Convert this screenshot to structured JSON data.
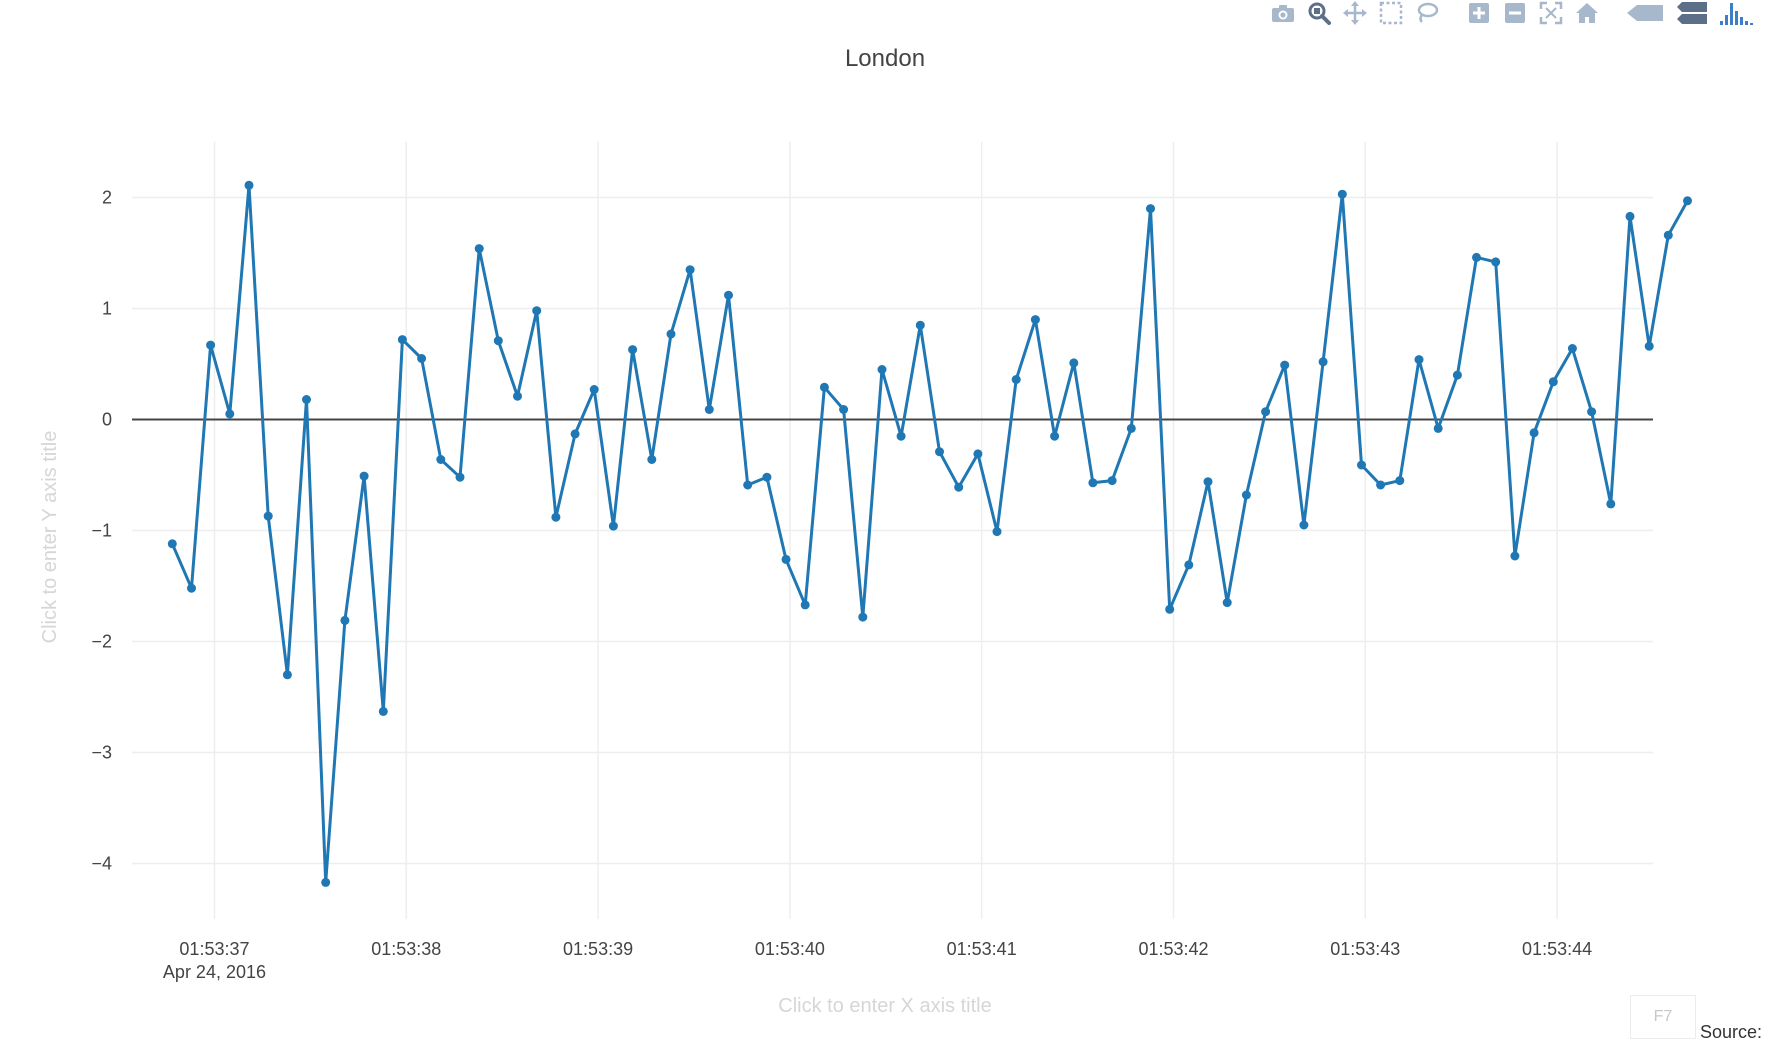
{
  "toolbar": {
    "buttons": [
      {
        "name": "camera-icon",
        "label": "Download plot as a png"
      },
      {
        "name": "zoom-icon",
        "label": "Zoom"
      },
      {
        "name": "pan-icon",
        "label": "Pan"
      },
      {
        "name": "box-select-icon",
        "label": "Box Select"
      },
      {
        "name": "lasso-select-icon",
        "label": "Lasso Select"
      },
      {
        "name": "zoom-in-icon",
        "label": "Zoom in"
      },
      {
        "name": "zoom-out-icon",
        "label": "Zoom out"
      },
      {
        "name": "autoscale-icon",
        "label": "Autoscale"
      },
      {
        "name": "reset-axes-icon",
        "label": "Reset axes"
      },
      {
        "name": "hover-closest-icon",
        "label": "Show closest data on hover"
      },
      {
        "name": "hover-compare-icon",
        "label": "Compare data on hover"
      },
      {
        "name": "plotly-logo-icon",
        "label": "Produced with Plotly"
      }
    ],
    "icon_color": "#a8b8cc",
    "active_color": "#5d6f88",
    "logo_color": "#3e7ec9"
  },
  "hint_box": {
    "label": "F7"
  },
  "source": {
    "label": "Source:"
  },
  "chart_data": {
    "type": "line",
    "title": "London",
    "xlabel": "Click to enter X axis title",
    "ylabel": "Click to enter Y axis title",
    "x_start": "01:53:36.78",
    "x_step_seconds": 0.1,
    "x_range": [
      "01:53:36.57",
      "01:53:44.50"
    ],
    "x_ticks": [
      "01:53:37",
      "01:53:38",
      "01:53:39",
      "01:53:40",
      "01:53:41",
      "01:53:42",
      "01:53:43",
      "01:53:44"
    ],
    "x_tick_date_label": "Apr 24, 2016",
    "y_ticks": [
      2,
      1,
      0,
      -1,
      -2,
      -3,
      -4
    ],
    "y_tick_labels": [
      "2",
      "1",
      "0",
      "−1",
      "−2",
      "−3",
      "−4"
    ],
    "ylim": [
      -4.5,
      2.5
    ],
    "grid": true,
    "zeroline": true,
    "line_color": "#1f77b4",
    "series": [
      {
        "values": [
          -1.12,
          -1.52,
          0.67,
          0.05,
          2.11,
          -0.87,
          -2.3,
          0.18,
          -4.17,
          -1.81,
          -0.51,
          -2.63,
          0.72,
          0.55,
          -0.36,
          -0.52,
          1.54,
          0.71,
          0.21,
          0.98,
          -0.88,
          -0.13,
          0.27,
          -0.96,
          0.63,
          -0.36,
          0.77,
          1.35,
          0.09,
          1.12,
          -0.59,
          -0.52,
          -1.26,
          -1.67,
          0.29,
          0.09,
          -1.78,
          0.45,
          -0.15,
          0.85,
          -0.29,
          -0.61,
          -0.31,
          -1.01,
          0.36,
          0.9,
          -0.15,
          0.51,
          -0.57,
          -0.55,
          -0.08,
          1.9,
          -1.71,
          -1.31,
          -0.56,
          -1.65,
          -0.68,
          0.07,
          0.49,
          -0.95,
          0.52,
          2.03,
          -0.41,
          -0.59,
          -0.55,
          0.54,
          -0.08,
          0.4,
          1.46,
          1.42,
          -1.23,
          -0.12,
          0.34,
          0.64,
          0.07,
          -0.76,
          1.83,
          0.66,
          1.66,
          1.97
        ]
      }
    ]
  }
}
